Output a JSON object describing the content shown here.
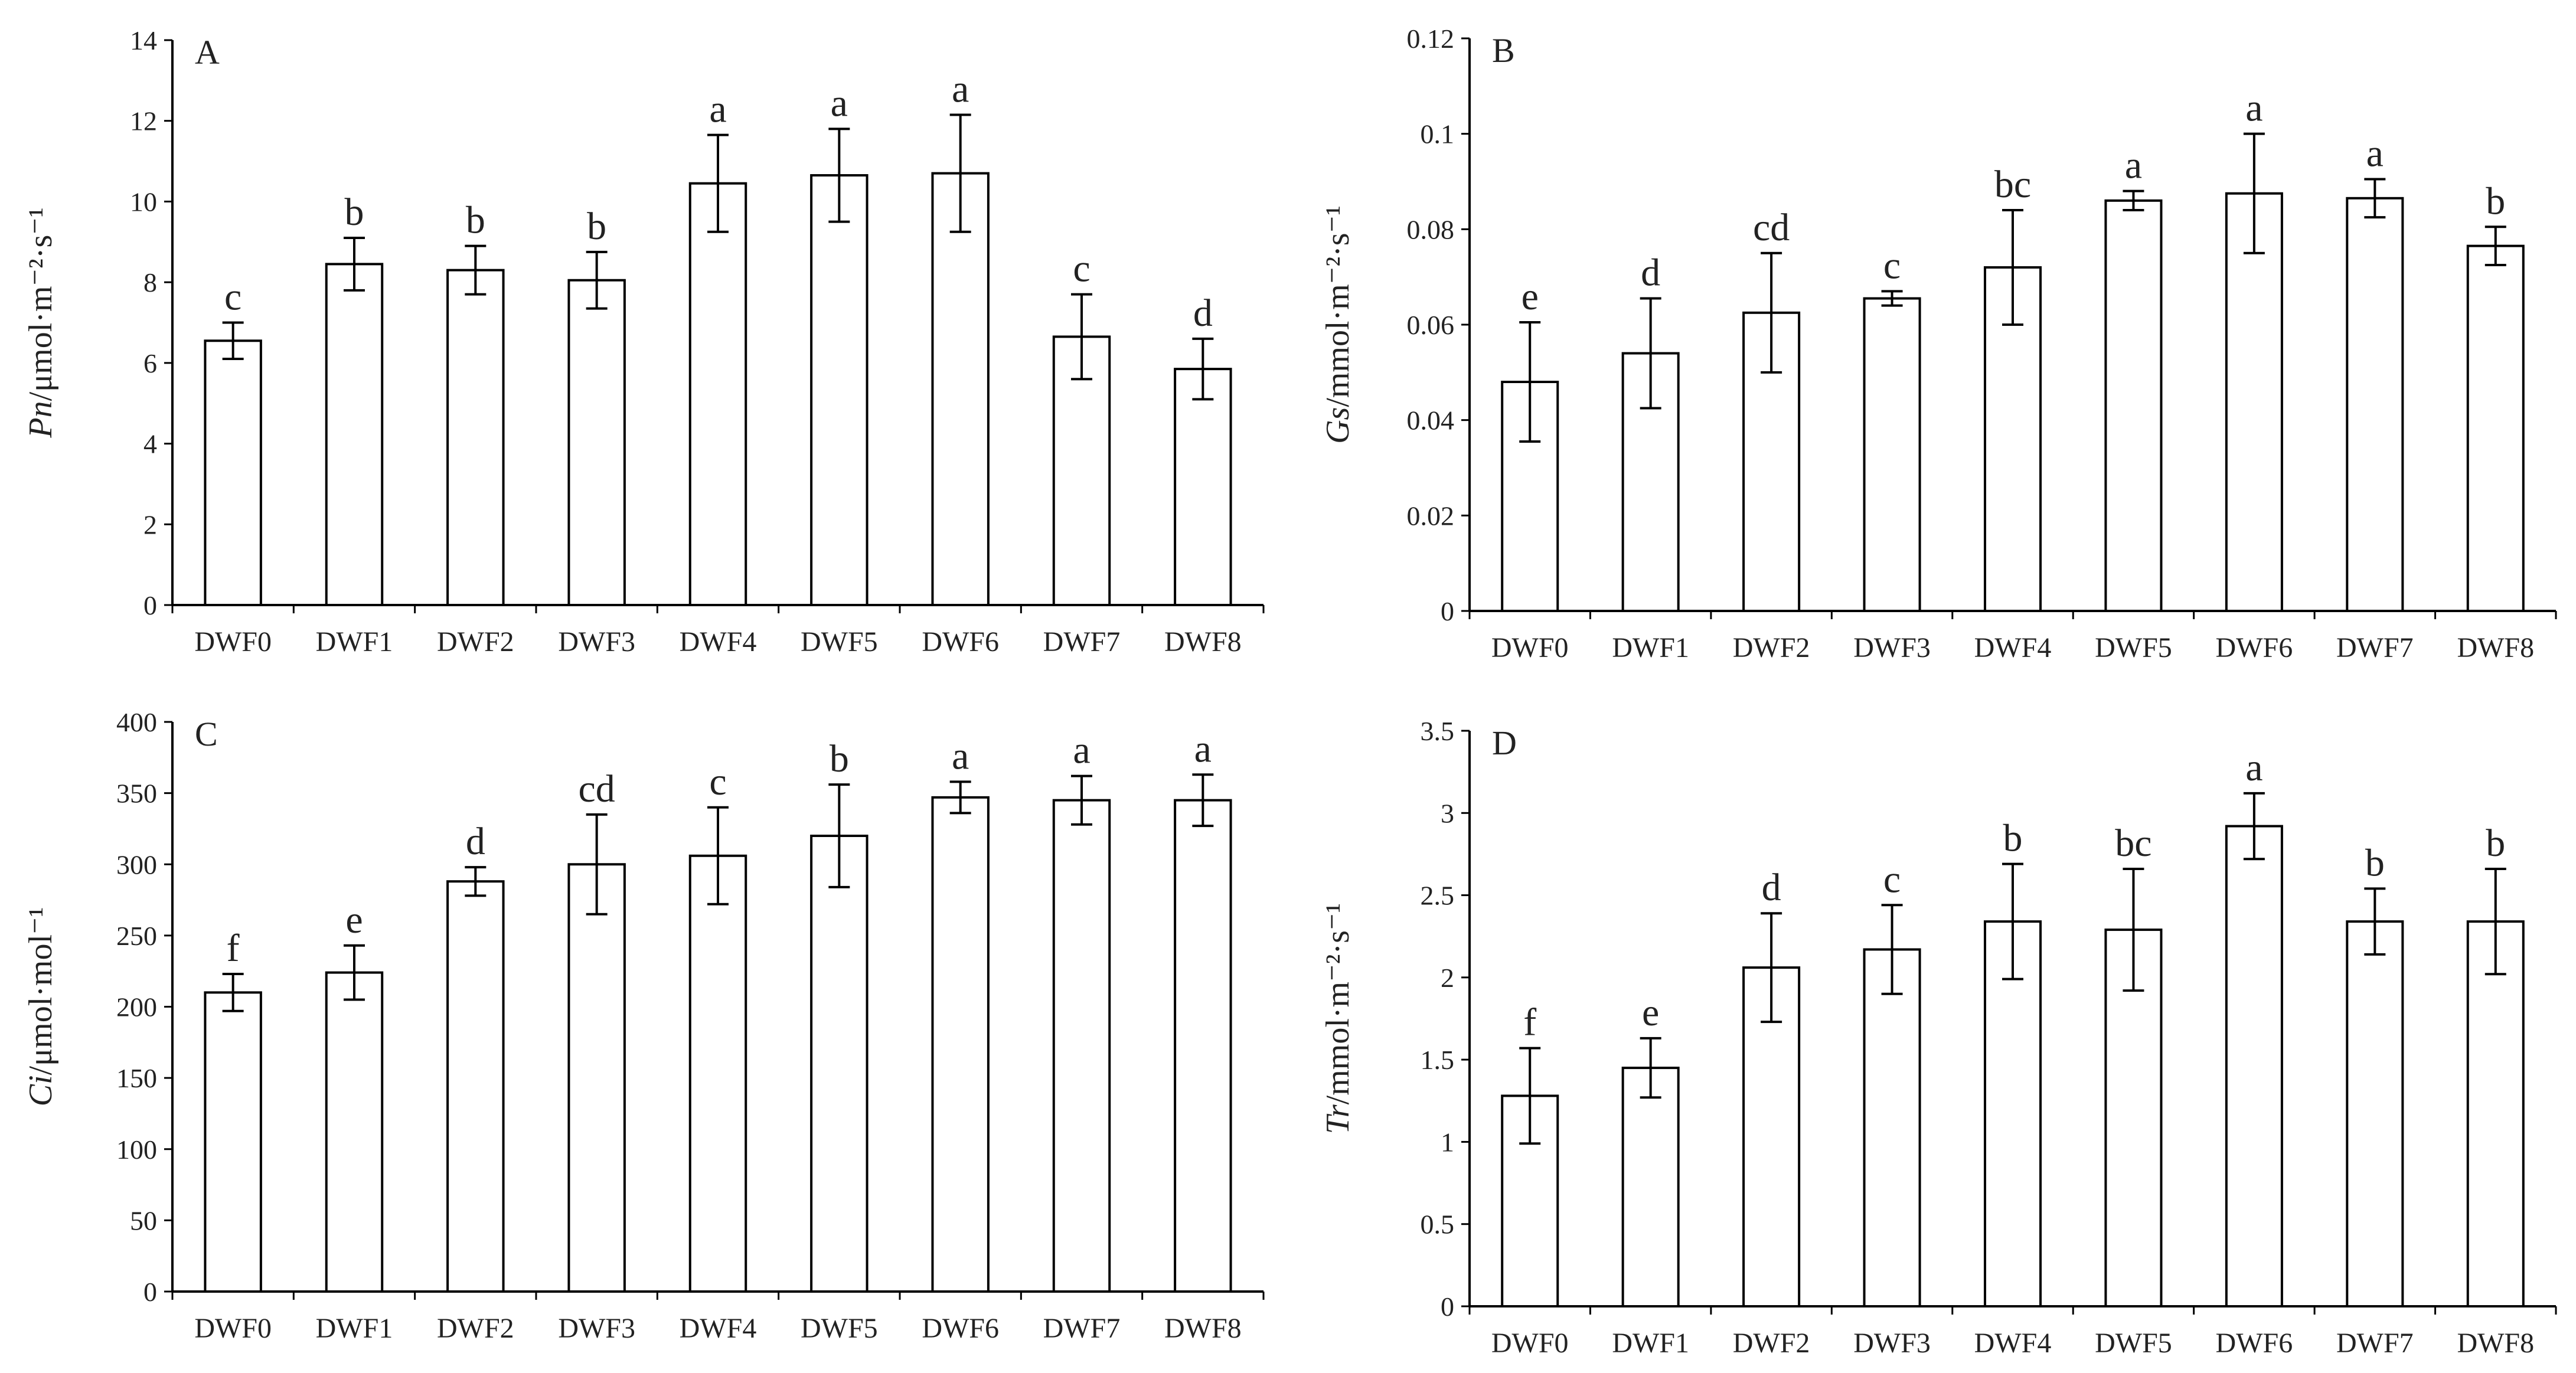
{
  "figure": {
    "categories": [
      "DWF0",
      "DWF1",
      "DWF2",
      "DWF3",
      "DWF4",
      "DWF5",
      "DWF6",
      "DWF7",
      "DWF8"
    ]
  },
  "chart_data": [
    {
      "type": "bar",
      "panel": "A",
      "ylabel": {
        "var": "Pn",
        "unit": "/μmol·m⁻²·s⁻¹"
      },
      "categories": [
        "DWF0",
        "DWF1",
        "DWF2",
        "DWF3",
        "DWF4",
        "DWF5",
        "DWF6",
        "DWF7",
        "DWF8"
      ],
      "values": [
        6.55,
        8.45,
        8.3,
        8.05,
        10.45,
        10.65,
        10.7,
        6.65,
        5.85
      ],
      "errors": [
        0.45,
        0.65,
        0.6,
        0.7,
        1.2,
        1.15,
        1.45,
        1.05,
        0.75
      ],
      "letters": [
        "c",
        "b",
        "b",
        "b",
        "a",
        "a",
        "a",
        "c",
        "d"
      ],
      "ylim": [
        0,
        14
      ],
      "yticks": [
        0,
        2,
        4,
        6,
        8,
        10,
        12,
        14
      ],
      "ytick_labels": [
        "0",
        "2",
        "4",
        "6",
        "8",
        "10",
        "12",
        "14"
      ],
      "grid": false
    },
    {
      "type": "bar",
      "panel": "B",
      "ylabel": {
        "var": "Gs",
        "unit": "/mmol·m⁻²·s⁻¹"
      },
      "categories": [
        "DWF0",
        "DWF1",
        "DWF2",
        "DWF3",
        "DWF4",
        "DWF5",
        "DWF6",
        "DWF7",
        "DWF8"
      ],
      "values": [
        0.048,
        0.054,
        0.0625,
        0.0655,
        0.072,
        0.086,
        0.0875,
        0.0865,
        0.0765
      ],
      "errors": [
        0.0125,
        0.0115,
        0.0125,
        0.0015,
        0.012,
        0.002,
        0.0125,
        0.004,
        0.004
      ],
      "letters": [
        "e",
        "d",
        "cd",
        "c",
        "bc",
        "a",
        "a",
        "a",
        "b"
      ],
      "ylim": [
        0,
        0.12
      ],
      "yticks": [
        0,
        0.02,
        0.04,
        0.06,
        0.08,
        0.1,
        0.12
      ],
      "ytick_labels": [
        "0",
        "0.02",
        "0.04",
        "0.06",
        "0.08",
        "0.1",
        "0.12"
      ],
      "grid": false
    },
    {
      "type": "bar",
      "panel": "C",
      "ylabel": {
        "var": "Ci",
        "unit": "/μmol·mol⁻¹"
      },
      "categories": [
        "DWF0",
        "DWF1",
        "DWF2",
        "DWF3",
        "DWF4",
        "DWF5",
        "DWF6",
        "DWF7",
        "DWF8"
      ],
      "values": [
        210,
        224,
        288,
        300,
        306,
        320,
        347,
        345,
        345
      ],
      "errors": [
        13,
        19,
        10,
        35,
        34,
        36,
        11,
        17,
        18
      ],
      "letters": [
        "f",
        "e",
        "d",
        "cd",
        "c",
        "b",
        "a",
        "a",
        "a"
      ],
      "ylim": [
        0,
        400
      ],
      "yticks": [
        0,
        50,
        100,
        150,
        200,
        250,
        300,
        350,
        400
      ],
      "ytick_labels": [
        "0",
        "50",
        "100",
        "150",
        "200",
        "250",
        "300",
        "350",
        "400"
      ],
      "grid": false
    },
    {
      "type": "bar",
      "panel": "D",
      "ylabel": {
        "var": "Tr",
        "unit": "/mmol·m⁻²·s⁻¹"
      },
      "categories": [
        "DWF0",
        "DWF1",
        "DWF2",
        "DWF3",
        "DWF4",
        "DWF5",
        "DWF6",
        "DWF7",
        "DWF8"
      ],
      "values": [
        1.28,
        1.45,
        2.06,
        2.17,
        2.34,
        2.29,
        2.92,
        2.34,
        2.34
      ],
      "errors": [
        0.29,
        0.18,
        0.33,
        0.27,
        0.35,
        0.37,
        0.2,
        0.2,
        0.32
      ],
      "letters": [
        "f",
        "e",
        "d",
        "c",
        "b",
        "bc",
        "a",
        "b",
        "b"
      ],
      "ylim": [
        0,
        3.5
      ],
      "yticks": [
        0,
        0.5,
        1,
        1.5,
        2,
        2.5,
        3,
        3.5
      ],
      "ytick_labels": [
        "0",
        "0.5",
        "1",
        "1.5",
        "2",
        "2.5",
        "3",
        "3.5"
      ],
      "grid": false
    }
  ]
}
